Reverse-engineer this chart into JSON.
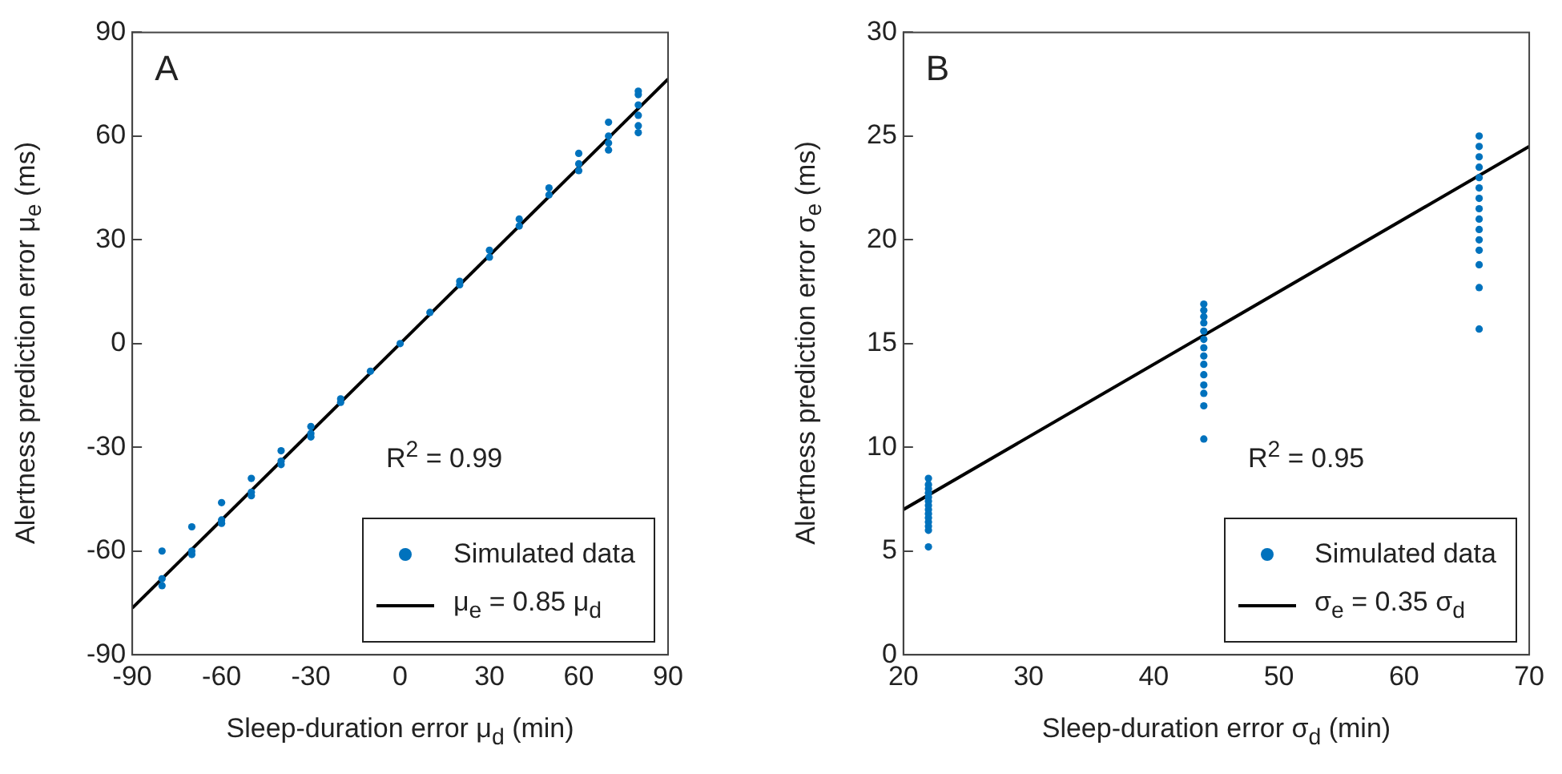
{
  "chart_data": [
    {
      "type": "scatter",
      "title": "A",
      "xlabel": "Sleep-duration error μ$_{d}$ (min)",
      "ylabel": "Alertness prediction error μ$_{e}$ (ms)",
      "annotations": [
        "R$^{2}$ = 0.99"
      ],
      "xlim": [
        -90,
        90
      ],
      "xticks": [
        -90,
        -60,
        -30,
        0,
        30,
        60,
        90
      ],
      "ylim": [
        -90,
        90
      ],
      "yticks": [
        -90,
        -60,
        -30,
        0,
        30,
        60,
        90
      ],
      "grid": false,
      "legend": "bottom right",
      "series": [
        {
          "name": "Simulated data",
          "marker": "circle",
          "color": "#0072bd",
          "x": [
            -80,
            -80,
            -80,
            -70,
            -70,
            -70,
            -60,
            -60,
            -60,
            -50,
            -50,
            -50,
            -40,
            -40,
            -40,
            -30,
            -30,
            -30,
            -20,
            -20,
            -10,
            0,
            10,
            20,
            20,
            30,
            30,
            40,
            40,
            50,
            50,
            60,
            60,
            60,
            70,
            70,
            70,
            70,
            80,
            80,
            80,
            80,
            80,
            80
          ],
          "values": [
            -60,
            -68,
            -70,
            -53,
            -60,
            -61,
            -46,
            -51,
            -52,
            -39,
            -43,
            -44,
            -31,
            -34,
            -35,
            -24,
            -26,
            -27,
            -16,
            -17,
            -8,
            0,
            9,
            17,
            18,
            25,
            27,
            34,
            36,
            43,
            45,
            50,
            52,
            55,
            56,
            58,
            60,
            64,
            61,
            63,
            66,
            69,
            72,
            73
          ]
        },
        {
          "name": "μ$_{e}$ = 0.85 μ$_{d}$",
          "type": "line",
          "marker": "none",
          "color": "#000000",
          "x": [
            -90,
            90
          ],
          "values": [
            -76.5,
            76.5
          ]
        }
      ]
    },
    {
      "type": "scatter",
      "title": "B",
      "xlabel": "Sleep-duration error σ$_{d}$ (min)",
      "ylabel": "Alertness prediction error σ$_{e}$ (ms)",
      "annotations": [
        "R$^{2}$ = 0.95"
      ],
      "xlim": [
        20,
        70
      ],
      "xticks": [
        20,
        30,
        40,
        50,
        60,
        70
      ],
      "ylim": [
        0,
        30
      ],
      "yticks": [
        0,
        5,
        10,
        15,
        20,
        25,
        30
      ],
      "grid": false,
      "legend": "bottom right",
      "series": [
        {
          "name": "Simulated data",
          "marker": "circle",
          "color": "#0072bd",
          "x": [
            22,
            22,
            22,
            22,
            22,
            22,
            22,
            22,
            22,
            22,
            22,
            22,
            22,
            22,
            44,
            44,
            44,
            44,
            44,
            44,
            44,
            44,
            44,
            44,
            44,
            44,
            44,
            44,
            66,
            66,
            66,
            66,
            66,
            66,
            66,
            66,
            66,
            66,
            66,
            66,
            66,
            66,
            66
          ],
          "values": [
            5.2,
            6.0,
            6.2,
            6.4,
            6.6,
            6.8,
            7.0,
            7.2,
            7.4,
            7.6,
            7.8,
            8.0,
            8.2,
            8.5,
            10.4,
            12.0,
            12.6,
            13.0,
            13.5,
            14.0,
            14.4,
            14.8,
            15.2,
            15.6,
            16.0,
            16.3,
            16.6,
            16.9,
            15.7,
            17.7,
            18.8,
            19.5,
            20.0,
            20.5,
            21.0,
            21.5,
            22.0,
            22.5,
            23.0,
            23.5,
            24.0,
            24.5,
            25.0
          ]
        },
        {
          "name": "σ$_{e}$ = 0.35 σ$_{d}$",
          "type": "line",
          "marker": "none",
          "color": "#000000",
          "x": [
            20,
            70
          ],
          "values": [
            7,
            24.5
          ]
        }
      ]
    }
  ]
}
